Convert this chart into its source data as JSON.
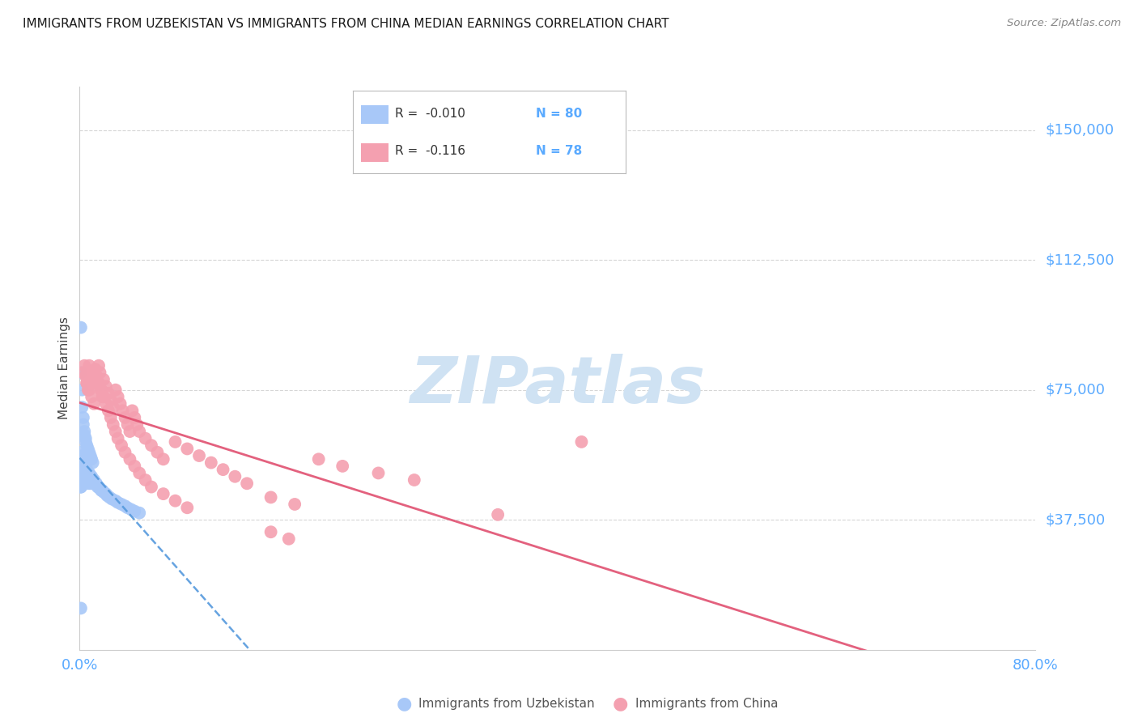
{
  "title": "IMMIGRANTS FROM UZBEKISTAN VS IMMIGRANTS FROM CHINA MEDIAN EARNINGS CORRELATION CHART",
  "source": "Source: ZipAtlas.com",
  "ylabel": "Median Earnings",
  "y_ticks": [
    0,
    37500,
    75000,
    112500,
    150000
  ],
  "y_label_color": "#5aaaff",
  "background_color": "#ffffff",
  "grid_color": "#cccccc",
  "watermark_text": "ZIPatlas",
  "watermark_color": "#cfe2f3",
  "legend_r1": "R =  -0.010",
  "legend_n1": "N = 80",
  "legend_r2": "R =  -0.116",
  "legend_n2": "N = 78",
  "legend_label1": "Immigrants from Uzbekistan",
  "legend_label2": "Immigrants from China",
  "uzbek_color": "#a8c8f8",
  "china_color": "#f4a0b0",
  "uzbek_line_color": "#5599dd",
  "china_line_color": "#e05070",
  "uzbek_scatter_x": [
    0.001,
    0.001,
    0.001,
    0.001,
    0.001,
    0.001,
    0.002,
    0.002,
    0.002,
    0.002,
    0.002,
    0.002,
    0.003,
    0.003,
    0.003,
    0.003,
    0.003,
    0.004,
    0.004,
    0.004,
    0.004,
    0.005,
    0.005,
    0.005,
    0.005,
    0.006,
    0.006,
    0.006,
    0.007,
    0.007,
    0.007,
    0.008,
    0.008,
    0.009,
    0.009,
    0.01,
    0.01,
    0.011,
    0.011,
    0.012,
    0.013,
    0.014,
    0.015,
    0.016,
    0.017,
    0.018,
    0.019,
    0.02,
    0.022,
    0.023,
    0.025,
    0.027,
    0.03,
    0.032,
    0.035,
    0.038,
    0.04,
    0.043,
    0.046,
    0.05,
    0.001,
    0.001,
    0.002,
    0.002,
    0.003,
    0.003,
    0.004,
    0.004,
    0.005,
    0.005,
    0.006,
    0.007,
    0.008,
    0.009,
    0.01,
    0.011,
    0.001,
    0.001,
    0.001,
    0.001
  ],
  "uzbek_scatter_y": [
    57000,
    55000,
    53000,
    52000,
    51000,
    49000,
    56000,
    54000,
    53000,
    51000,
    50000,
    48000,
    55000,
    53000,
    51000,
    50000,
    48000,
    54000,
    52000,
    50000,
    49000,
    53000,
    52000,
    50000,
    49000,
    52000,
    51000,
    49000,
    51000,
    50000,
    48000,
    51000,
    49000,
    50000,
    48000,
    50000,
    49000,
    49000,
    48000,
    49000,
    48000,
    48000,
    47000,
    47000,
    46500,
    46000,
    46000,
    45500,
    45000,
    44500,
    44000,
    43500,
    43000,
    42500,
    42000,
    41500,
    41000,
    40500,
    40000,
    39500,
    93000,
    80000,
    75000,
    70000,
    67000,
    65000,
    63000,
    62000,
    61000,
    60000,
    59000,
    58000,
    57000,
    56000,
    55000,
    54000,
    47000,
    47000,
    47000,
    12000
  ],
  "china_scatter_x": [
    0.003,
    0.004,
    0.005,
    0.006,
    0.007,
    0.008,
    0.009,
    0.01,
    0.011,
    0.012,
    0.013,
    0.014,
    0.015,
    0.016,
    0.017,
    0.018,
    0.019,
    0.02,
    0.022,
    0.024,
    0.026,
    0.028,
    0.03,
    0.032,
    0.034,
    0.036,
    0.038,
    0.04,
    0.042,
    0.044,
    0.046,
    0.048,
    0.05,
    0.055,
    0.06,
    0.065,
    0.07,
    0.08,
    0.09,
    0.1,
    0.11,
    0.12,
    0.13,
    0.14,
    0.16,
    0.18,
    0.2,
    0.22,
    0.25,
    0.28,
    0.006,
    0.008,
    0.01,
    0.012,
    0.014,
    0.016,
    0.018,
    0.02,
    0.022,
    0.024,
    0.026,
    0.028,
    0.03,
    0.032,
    0.035,
    0.038,
    0.042,
    0.046,
    0.05,
    0.055,
    0.06,
    0.07,
    0.08,
    0.09,
    0.35,
    0.42,
    0.16,
    0.175
  ],
  "china_scatter_y": [
    80000,
    82000,
    79000,
    77000,
    75000,
    82000,
    80000,
    78000,
    79000,
    77000,
    81000,
    79000,
    77000,
    82000,
    80000,
    75000,
    73000,
    78000,
    76000,
    74000,
    72000,
    70000,
    75000,
    73000,
    71000,
    69000,
    67000,
    65000,
    63000,
    69000,
    67000,
    65000,
    63000,
    61000,
    59000,
    57000,
    55000,
    60000,
    58000,
    56000,
    54000,
    52000,
    50000,
    48000,
    44000,
    42000,
    55000,
    53000,
    51000,
    49000,
    77000,
    75000,
    73000,
    71000,
    79000,
    77000,
    75000,
    73000,
    71000,
    69000,
    67000,
    65000,
    63000,
    61000,
    59000,
    57000,
    55000,
    53000,
    51000,
    49000,
    47000,
    45000,
    43000,
    41000,
    39000,
    60000,
    34000,
    32000
  ],
  "xlim": [
    0.0,
    0.8
  ],
  "ylim": [
    0,
    162500
  ]
}
